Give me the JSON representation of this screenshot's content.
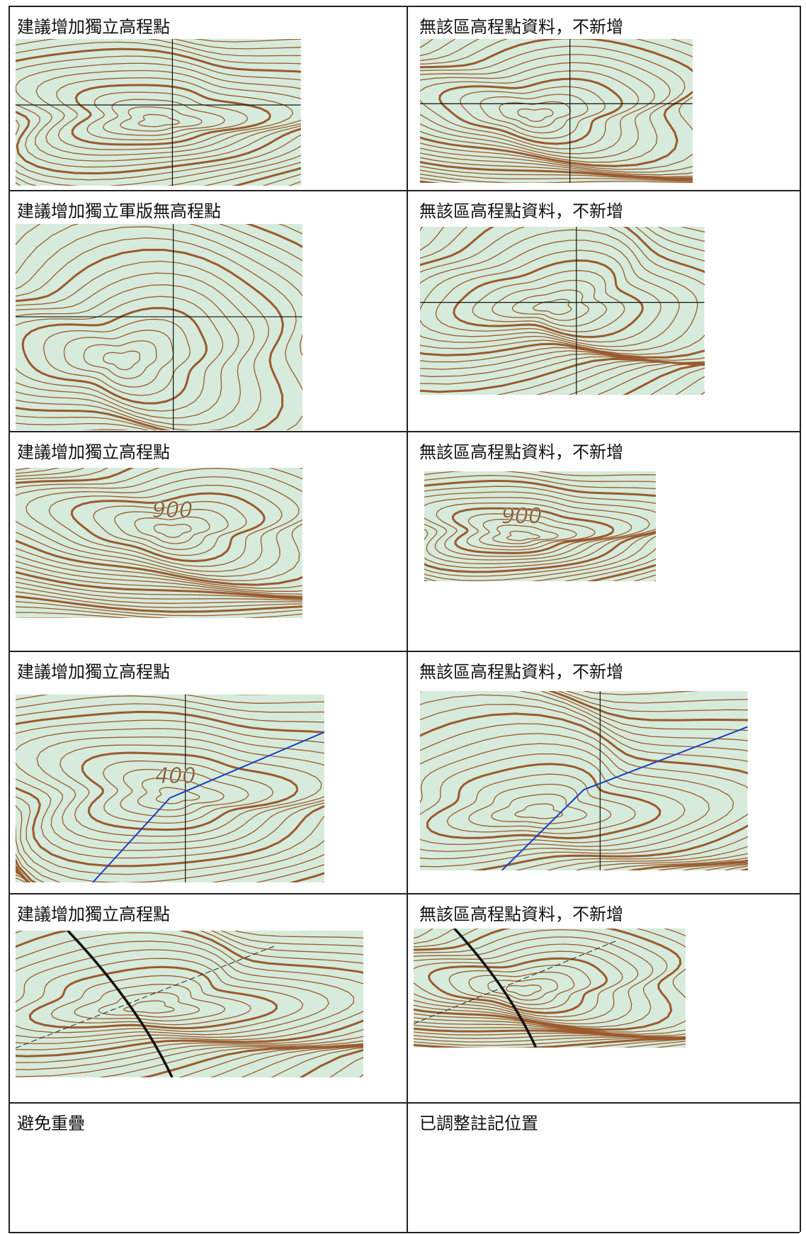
{
  "table": {
    "rows": [
      {
        "left": {
          "caption": "建議增加獨立高程點",
          "map_labels": []
        },
        "right": {
          "caption": "無該區高程點資料，不新增",
          "map_labels": []
        }
      },
      {
        "left": {
          "caption": "建議增加獨立軍版無高程點",
          "map_labels": []
        },
        "right": {
          "caption": "無該區高程點資料，不新增",
          "map_labels": []
        }
      },
      {
        "left": {
          "caption": "建議增加獨立高程點",
          "map_labels": [
            "900"
          ]
        },
        "right": {
          "caption": "無該區高程點資料，不新增",
          "map_labels": [
            "900"
          ]
        }
      },
      {
        "left": {
          "caption": "建議增加獨立高程點",
          "map_labels": [
            "400"
          ]
        },
        "right": {
          "caption": "無該區高程點資料，不新增",
          "map_labels": []
        }
      },
      {
        "left": {
          "caption": "建議增加獨立高程點",
          "map_labels": []
        },
        "right": {
          "caption": "無該區高程點資料，不新增",
          "map_labels": []
        }
      },
      {
        "left": {
          "caption": "避免重疊"
        },
        "right": {
          "caption": "已調整註記位置"
        }
      }
    ]
  }
}
